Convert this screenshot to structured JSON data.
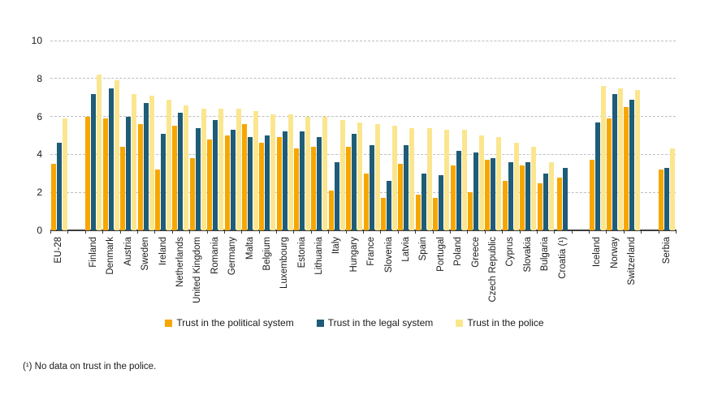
{
  "figure": {
    "footnote": "(¹) No data on trust in the police.",
    "background": "#ffffff",
    "axis_color": "#3d3d3d",
    "gridline_color": "#bfbfbf"
  },
  "legend": {
    "items": [
      {
        "key": "political",
        "label": "Trust in the political system",
        "color": "#F7A600"
      },
      {
        "key": "legal",
        "label": "Trust in the legal system",
        "color": "#1E5C78"
      },
      {
        "key": "police",
        "label": "Trust in the police",
        "color": "#FBE68F"
      }
    ]
  },
  "chart_data": {
    "type": "bar",
    "title": "",
    "xlabel": "",
    "ylabel": "",
    "ylim": [
      0,
      10
    ],
    "y_ticks": [
      0,
      2,
      4,
      6,
      8,
      10
    ],
    "grid": "horizontal-dashed",
    "legend_position": "bottom",
    "series": [
      {
        "key": "political",
        "name": "Trust in the political system",
        "color": "#F7A600"
      },
      {
        "key": "legal",
        "name": "Trust in the legal system",
        "color": "#1E5C78"
      },
      {
        "key": "police",
        "name": "Trust in the police",
        "color": "#FBE68F"
      }
    ],
    "groups": [
      {
        "label": "EU-28",
        "values": [
          3.5,
          4.6,
          5.9
        ]
      },
      {
        "spacer": true
      },
      {
        "label": "Finland",
        "values": [
          6.0,
          7.2,
          8.2
        ]
      },
      {
        "label": "Denmark",
        "values": [
          5.9,
          7.5,
          7.9
        ]
      },
      {
        "label": "Austria",
        "values": [
          4.4,
          6.0,
          7.2
        ]
      },
      {
        "label": "Sweden",
        "values": [
          5.6,
          6.7,
          7.1
        ]
      },
      {
        "label": "Ireland",
        "values": [
          3.2,
          5.1,
          6.9
        ]
      },
      {
        "label": "Netherlands",
        "values": [
          5.5,
          6.2,
          6.6
        ]
      },
      {
        "label": "United Kingdom",
        "values": [
          3.8,
          5.4,
          6.4
        ]
      },
      {
        "label": "Romania",
        "values": [
          4.8,
          5.8,
          6.4
        ]
      },
      {
        "label": "Germany",
        "values": [
          5.0,
          5.3,
          6.4
        ]
      },
      {
        "label": "Malta",
        "values": [
          5.6,
          4.9,
          6.3
        ]
      },
      {
        "label": "Belgium",
        "values": [
          4.6,
          5.0,
          6.1
        ]
      },
      {
        "label": "Luxembourg",
        "values": [
          4.9,
          5.2,
          6.1
        ]
      },
      {
        "label": "Estonia",
        "values": [
          4.3,
          5.2,
          6.0
        ]
      },
      {
        "label": "Lithuania",
        "values": [
          4.4,
          4.9,
          6.0
        ]
      },
      {
        "label": "Italy",
        "values": [
          2.1,
          3.6,
          5.8
        ]
      },
      {
        "label": "Hungary",
        "values": [
          4.4,
          5.1,
          5.7
        ]
      },
      {
        "label": "France",
        "values": [
          3.0,
          4.5,
          5.6
        ]
      },
      {
        "label": "Slovenia",
        "values": [
          1.7,
          2.6,
          5.5
        ]
      },
      {
        "label": "Latvia",
        "values": [
          3.5,
          4.5,
          5.4
        ]
      },
      {
        "label": "Spain",
        "values": [
          1.9,
          3.0,
          5.4
        ]
      },
      {
        "label": "Portugal",
        "values": [
          1.7,
          2.9,
          5.3
        ]
      },
      {
        "label": "Poland",
        "values": [
          3.4,
          4.2,
          5.3
        ]
      },
      {
        "label": "Greece",
        "values": [
          2.0,
          4.1,
          5.0
        ]
      },
      {
        "label": "Czech Republic",
        "values": [
          3.7,
          3.8,
          4.9
        ]
      },
      {
        "label": "Cyprus",
        "values": [
          2.6,
          3.6,
          4.6
        ]
      },
      {
        "label": "Slovakia",
        "values": [
          3.4,
          3.6,
          4.4
        ]
      },
      {
        "label": "Bulgaria",
        "values": [
          2.5,
          3.0,
          3.6
        ]
      },
      {
        "label": "Croatia (¹)",
        "values": [
          2.8,
          3.3,
          null
        ]
      },
      {
        "spacer": true
      },
      {
        "label": "Iceland",
        "values": [
          3.7,
          5.7,
          7.6
        ]
      },
      {
        "label": "Norway",
        "values": [
          5.9,
          7.2,
          7.5
        ]
      },
      {
        "label": "Switzerland",
        "values": [
          6.5,
          6.9,
          7.4
        ]
      },
      {
        "spacer": true
      },
      {
        "label": "Serbia",
        "values": [
          3.2,
          3.3,
          4.3
        ]
      }
    ]
  }
}
